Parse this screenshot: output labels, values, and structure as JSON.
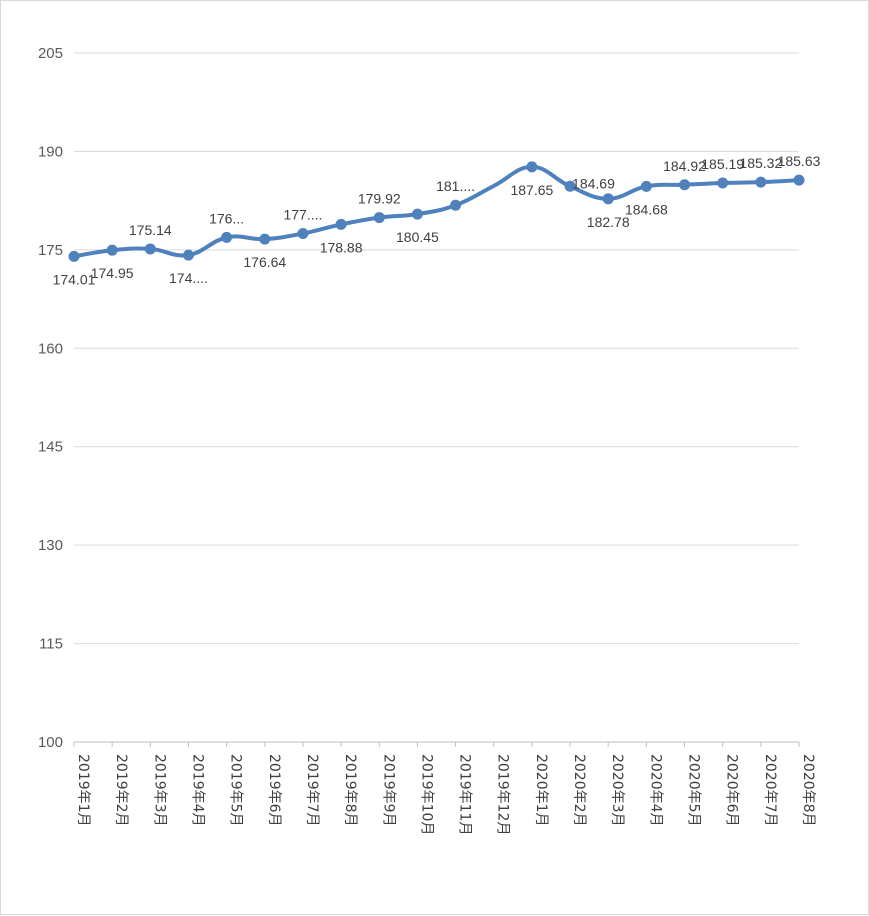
{
  "chart_data": {
    "type": "line",
    "smooth": true,
    "color": "#4f81bd",
    "grid": true,
    "legend": "none",
    "ylim": [
      100,
      205
    ],
    "yticks": [
      100,
      115,
      130,
      145,
      160,
      175,
      190,
      205
    ],
    "ytick_labels": [
      "100",
      "115",
      "130",
      "145",
      "160",
      "175",
      "190",
      "205"
    ],
    "categories": [
      "2019年1月",
      "2019年2月",
      "2019年3月",
      "2019年4月",
      "2019年5月",
      "2019年6月",
      "2019年7月",
      "2019年8月",
      "2019年9月",
      "2019年10月",
      "2019年11月",
      "2019年12月",
      "2020年1月",
      "2020年2月",
      "2020年3月",
      "2020年4月",
      "2020年5月",
      "2020年6月",
      "2020年7月",
      "2020年8月"
    ],
    "values": [
      174.01,
      174.95,
      175.14,
      174.2,
      176.9,
      176.64,
      177.5,
      178.88,
      179.92,
      180.45,
      181.8,
      null,
      187.65,
      184.69,
      182.78,
      184.68,
      184.92,
      185.19,
      185.32,
      185.63
    ],
    "data_labels": [
      "174.01",
      "174.95",
      "175.14",
      "174....",
      "176...",
      "176.64",
      "177....",
      "178.88",
      "179.92",
      "180.45",
      "181....",
      "",
      "187.65",
      "184.69",
      "182.78",
      "184.68",
      "184.92",
      "185.19",
      "185.32",
      "185.63"
    ],
    "label_positions": [
      "below",
      "below",
      "above",
      "below",
      "above",
      "below",
      "above",
      "below",
      "above",
      "below",
      "above",
      "none",
      "below",
      "right",
      "below",
      "below",
      "above",
      "above",
      "above",
      "above"
    ]
  }
}
